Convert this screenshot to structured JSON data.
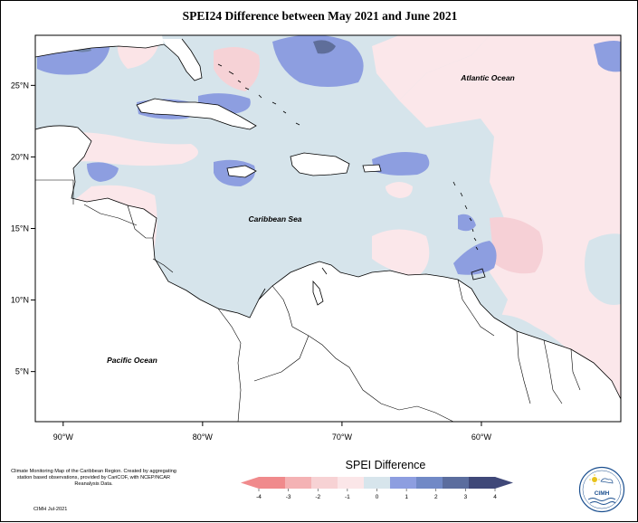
{
  "title": "SPEI24 Difference between May 2021 and June 2021",
  "map": {
    "lon_range": [
      -92,
      -50
    ],
    "lat_range": [
      1.5,
      28.5
    ],
    "x_ticks": [
      {
        "lon": -90,
        "label": "90°W"
      },
      {
        "lon": -80,
        "label": "80°W"
      },
      {
        "lon": -70,
        "label": "70°W"
      },
      {
        "lon": -60,
        "label": "60°W"
      }
    ],
    "y_ticks": [
      {
        "lat": 25,
        "label": "25°N"
      },
      {
        "lat": 20,
        "label": "20°N"
      },
      {
        "lat": 15,
        "label": "15°N"
      },
      {
        "lat": 10,
        "label": "10°N"
      },
      {
        "lat": 5,
        "label": "5°N"
      }
    ],
    "labels": {
      "atlantic": "Atlantic Ocean",
      "caribbean": "Caribbean Sea",
      "pacific": "Pacific Ocean"
    }
  },
  "legend": {
    "title": "SPEI Difference",
    "ticks": [
      "-4",
      "-3",
      "-2",
      "-1",
      "0",
      "1",
      "2",
      "3",
      "4"
    ],
    "colors": [
      "#f08a8c",
      "#f4b2b4",
      "#f7d2d4",
      "#fbe6e8",
      "#d7e5ec",
      "#8d9ee0",
      "#7189c6",
      "#5b6d9e",
      "#3f4878"
    ]
  },
  "credits": {
    "text": "Climate Monitoring Map of the Caribbean Region. Created by aggregating station based observations, provided by CariCOF, with NCEP/NCAR Reanalysis Data.",
    "date": "CIMH Jul-2021"
  },
  "logo": {
    "text": "CIMH"
  }
}
